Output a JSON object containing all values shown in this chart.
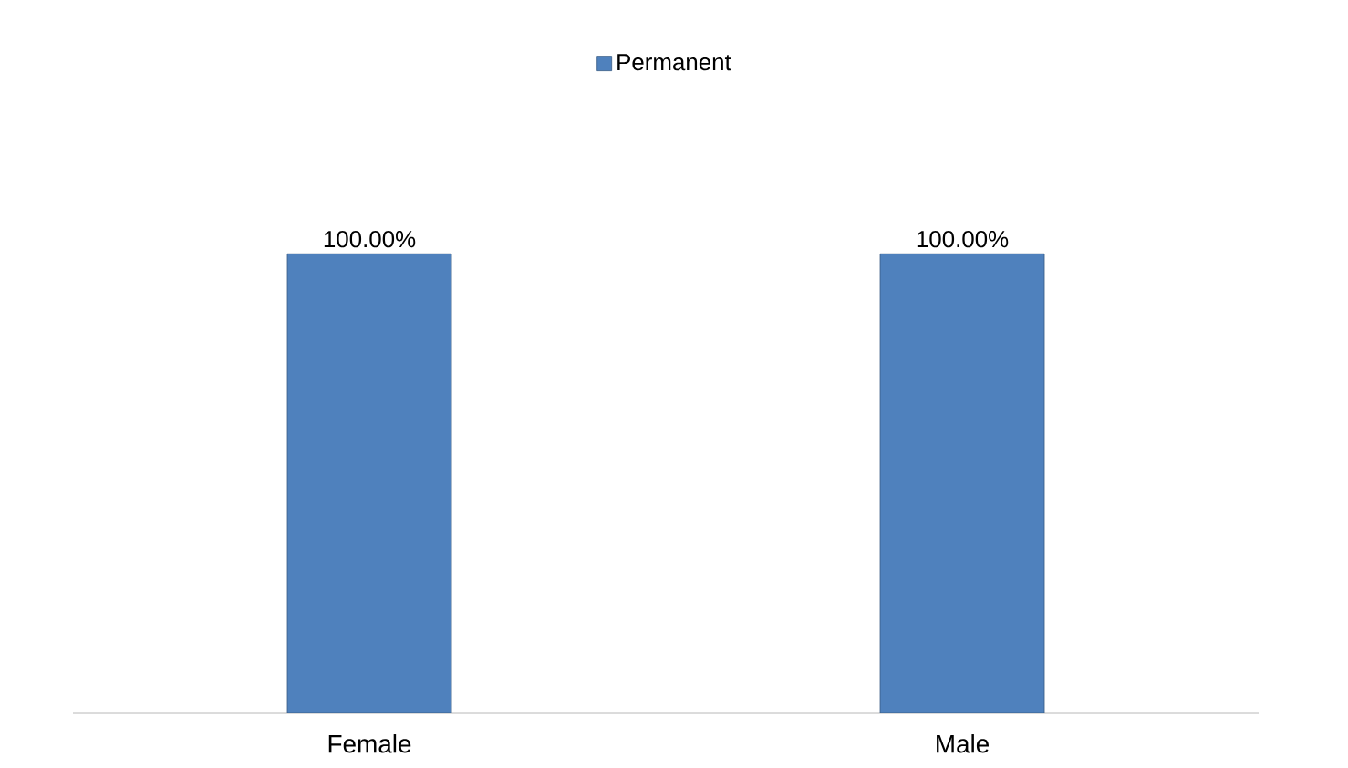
{
  "chart_data": {
    "type": "bar",
    "categories": [
      "Female",
      "Male"
    ],
    "series": [
      {
        "name": "Permanent",
        "color": "#4f81bd",
        "values": [
          100,
          100
        ],
        "value_labels": [
          "100.00%",
          "100.00%"
        ]
      }
    ],
    "legend": "top"
  }
}
